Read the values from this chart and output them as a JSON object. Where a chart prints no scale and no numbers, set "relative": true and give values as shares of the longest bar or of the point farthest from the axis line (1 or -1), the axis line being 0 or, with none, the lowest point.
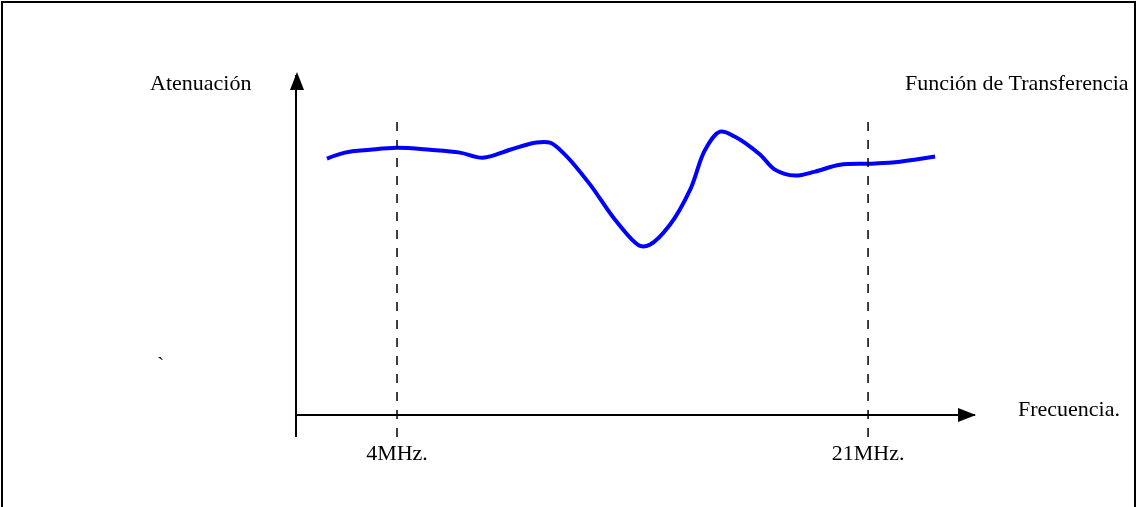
{
  "chart_data": {
    "type": "line",
    "title": "Función de Transferencia",
    "xlabel": "Frecuencia.",
    "ylabel": "Atenuación",
    "annotations": [
      "`"
    ],
    "relative": true,
    "x": [
      1.47,
      2.12,
      3.03,
      4,
      5.19,
      6.27,
      7.1,
      8.08,
      8.98,
      9.52,
      10.06,
      10.97,
      11.87,
      12.77,
      13.13,
      13.85,
      14.58,
      15.12,
      15.66,
      16.2,
      17.1,
      17.64,
      18.37,
      19.09,
      19.99,
      21.07,
      22.15,
      23.42
    ],
    "series": [
      {
        "color": "#0000ff",
        "values": [
          0.905,
          0.926,
          0.936,
          0.943,
          0.936,
          0.926,
          0.908,
          0.936,
          0.961,
          0.961,
          0.919,
          0.813,
          0.689,
          0.597,
          0.601,
          0.671,
          0.795,
          0.936,
          1.0,
          0.982,
          0.919,
          0.866,
          0.845,
          0.859,
          0.883,
          0.887,
          0.894,
          0.912
        ]
      }
    ],
    "xlim": [
      0.39,
      24.86
    ],
    "xticks": [
      {
        "value": 4,
        "label": "4MHz."
      },
      {
        "value": 21,
        "label": "21MHz."
      }
    ],
    "ref_lines": [
      {
        "axis": "x",
        "value": 4,
        "color": "#000000",
        "line_style": "dashed"
      },
      {
        "axis": "x",
        "value": 21,
        "color": "#000000",
        "line_style": "dashed"
      }
    ],
    "marker": "none",
    "line_style": "solid"
  }
}
